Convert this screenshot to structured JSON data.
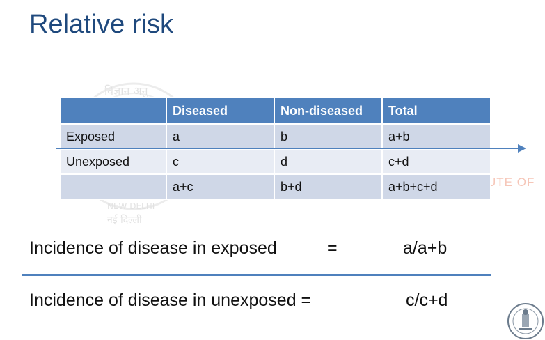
{
  "slide": {
    "title": "Relative risk"
  },
  "watermark": {
    "seal_text_top": "विज्ञान अनु",
    "seal_text_mid": "NEW DELHI",
    "seal_text_bottom": "नई दिल्ली",
    "right_text": "UTE OF"
  },
  "table": {
    "headers": [
      "",
      "Diseased",
      "Non-diseased",
      "Total"
    ],
    "rows": [
      [
        "Exposed",
        "a",
        "b",
        "a+b"
      ],
      [
        "Unexposed",
        "c",
        "d",
        "c+d"
      ],
      [
        "",
        "a+c",
        "b+d",
        "a+b+c+d"
      ]
    ]
  },
  "formulas": {
    "exposed_label": "Incidence of disease in exposed",
    "exposed_eq": "=",
    "exposed_value": "a/a+b",
    "unexposed_label": "Incidence of disease in unexposed =",
    "unexposed_value": "c/c+d"
  },
  "colors": {
    "title": "#1f497d",
    "header_bg": "#4f81bd",
    "row_dark": "#cfd7e7",
    "row_light": "#e8ecf4",
    "accent_line": "#4f81bd"
  }
}
